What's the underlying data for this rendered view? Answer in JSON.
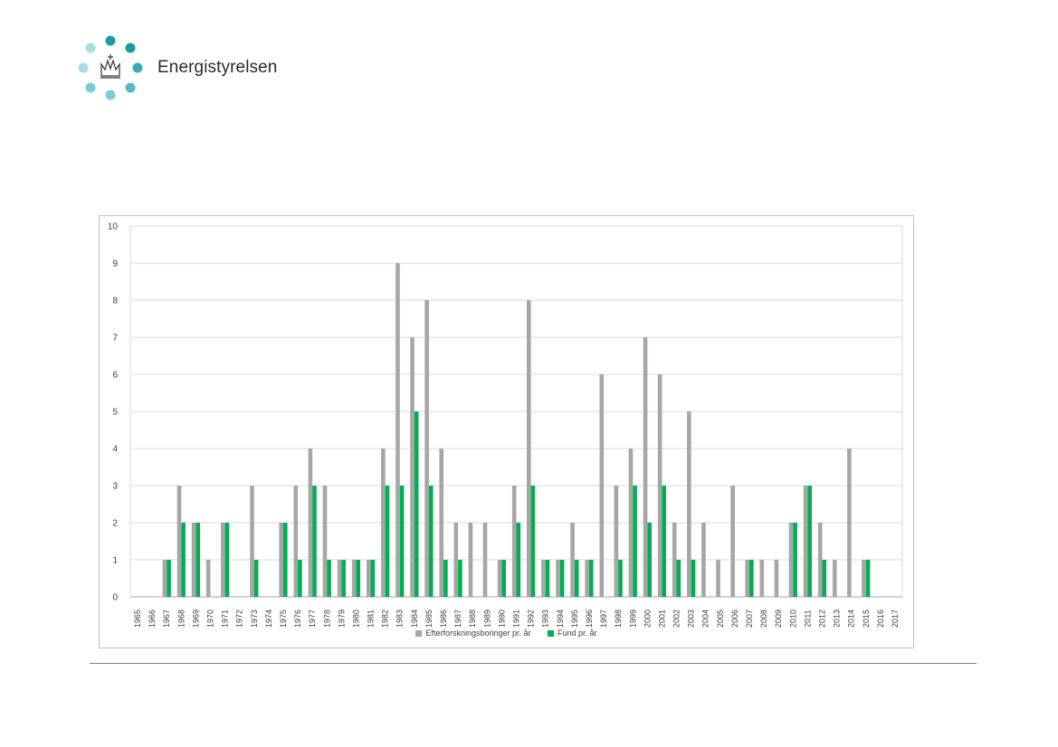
{
  "header": {
    "logo_text": "Energistyrelsen",
    "logo_icon": "crown-dots-logo"
  },
  "colors": {
    "series_gray": "#a6a6a6",
    "series_green": "#00b050",
    "gridline": "#d9d9d9",
    "dot_dark": "#1a9aa8",
    "dot_mid": "#5bb9c4",
    "dot_light": "#a9dde3"
  },
  "chart_data": {
    "type": "bar",
    "title": "",
    "xlabel": "",
    "ylabel": "",
    "ylim": [
      0,
      10
    ],
    "yticks": [
      0,
      1,
      2,
      3,
      4,
      5,
      6,
      7,
      8,
      9,
      10
    ],
    "grid": true,
    "legend_position": "bottom",
    "categories": [
      "1965",
      "1966",
      "1967",
      "1968",
      "1969",
      "1970",
      "1971",
      "1972",
      "1973",
      "1974",
      "1975",
      "1976",
      "1977",
      "1978",
      "1979",
      "1980",
      "1981",
      "1982",
      "1983",
      "1984",
      "1985",
      "1986",
      "1987",
      "1988",
      "1989",
      "1990",
      "1991",
      "1992",
      "1993",
      "1994",
      "1995",
      "1996",
      "1997",
      "1998",
      "1999",
      "2000",
      "2001",
      "2002",
      "2003",
      "2004",
      "2005",
      "2006",
      "2007",
      "2008",
      "2009",
      "2010",
      "2011",
      "2012",
      "2013",
      "2014",
      "2015",
      "2016",
      "2017"
    ],
    "series": [
      {
        "name": "Efterforskningsboringer pr. år",
        "color": "#a6a6a6",
        "values": [
          0,
          0,
          1,
          3,
          2,
          1,
          2,
          0,
          3,
          0,
          2,
          3,
          4,
          3,
          1,
          1,
          1,
          4,
          9,
          7,
          8,
          4,
          2,
          2,
          2,
          1,
          3,
          8,
          1,
          1,
          2,
          1,
          6,
          3,
          4,
          7,
          6,
          2,
          5,
          2,
          1,
          3,
          1,
          1,
          1,
          2,
          3,
          2,
          1,
          4,
          1,
          0,
          0
        ]
      },
      {
        "name": "Fund pr. år",
        "color": "#00b050",
        "values": [
          0,
          0,
          1,
          2,
          2,
          0,
          2,
          0,
          1,
          0,
          2,
          1,
          3,
          1,
          1,
          1,
          1,
          3,
          3,
          5,
          3,
          1,
          1,
          0,
          0,
          1,
          2,
          3,
          1,
          1,
          1,
          1,
          0,
          1,
          3,
          2,
          3,
          1,
          1,
          0,
          0,
          0,
          1,
          0,
          0,
          2,
          3,
          1,
          0,
          0,
          1,
          0,
          0
        ]
      }
    ]
  }
}
